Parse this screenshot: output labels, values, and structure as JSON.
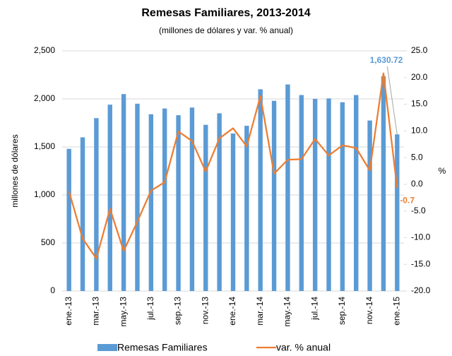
{
  "chart_data": {
    "type": "bar-line",
    "title": "Remesas Familiares, 2013-2014",
    "subtitle": "(millones de dólares y var. % anual)",
    "y_label": "millones de dólares",
    "y2_label": "%",
    "categories": [
      "ene.-13",
      null,
      "mar.-13",
      null,
      "may.-13",
      null,
      "jul.-13",
      null,
      "sep.-13",
      null,
      "nov.-13",
      null,
      "ene.-14",
      null,
      "mar.-14",
      null,
      "may.-14",
      null,
      "jul.-14",
      null,
      "sep.-14",
      null,
      "nov.-14",
      null,
      "ene.-15"
    ],
    "series": [
      {
        "name": "Remesas Familiares",
        "color": "#5b9bd5",
        "kind": "bar",
        "axis": "y",
        "values": [
          1480,
          1600,
          1800,
          1940,
          2050,
          1950,
          1840,
          1900,
          1830,
          1910,
          1730,
          1850,
          1640,
          1720,
          2100,
          1980,
          2150,
          2040,
          2000,
          2005,
          1965,
          2040,
          1775,
          2235,
          1630.72
        ],
        "value_labels": [
          null,
          null,
          null,
          null,
          null,
          null,
          null,
          null,
          null,
          null,
          null,
          null,
          null,
          null,
          null,
          null,
          null,
          null,
          null,
          null,
          null,
          null,
          null,
          null,
          "1,630.72"
        ]
      },
      {
        "name": "var. % anual",
        "color": "#ed7d31",
        "kind": "line",
        "axis": "y2",
        "values": [
          -1.3,
          -10.2,
          -13.9,
          -4.6,
          -12.5,
          -7.0,
          -1.2,
          0.4,
          9.9,
          8.1,
          2.4,
          8.6,
          10.5,
          7.1,
          16.5,
          2.0,
          4.6,
          4.7,
          8.5,
          5.4,
          7.3,
          6.8,
          2.6,
          20.8,
          -0.7
        ],
        "value_labels": [
          null,
          null,
          null,
          null,
          null,
          null,
          null,
          null,
          null,
          null,
          null,
          null,
          null,
          null,
          null,
          null,
          null,
          null,
          null,
          null,
          null,
          null,
          null,
          null,
          "-0.7"
        ]
      }
    ],
    "ylim": [
      0,
      2500
    ],
    "yticks": [
      0,
      500,
      {
        "value": 1000,
        "label": "1,000"
      },
      {
        "value": 1500,
        "label": "1,500"
      },
      {
        "value": 2000,
        "label": "2,000"
      },
      {
        "value": 2500,
        "label": "2,500"
      }
    ],
    "y2lim": [
      -20,
      25
    ],
    "y2ticks": [
      {
        "value": -20,
        "label": "-20.0"
      },
      {
        "value": -15,
        "label": "-15.0"
      },
      {
        "value": -10,
        "label": "-10.0"
      },
      {
        "value": -5,
        "label": "-5.0"
      },
      {
        "value": 0,
        "label": "0.0"
      },
      {
        "value": 5,
        "label": "5.0"
      },
      {
        "value": 10,
        "label": "10.0"
      },
      {
        "value": 15,
        "label": "15.0"
      },
      {
        "value": 20,
        "label": "20.0"
      },
      {
        "value": 25,
        "label": "25.0"
      }
    ],
    "grid": true,
    "legend": "bottom"
  }
}
